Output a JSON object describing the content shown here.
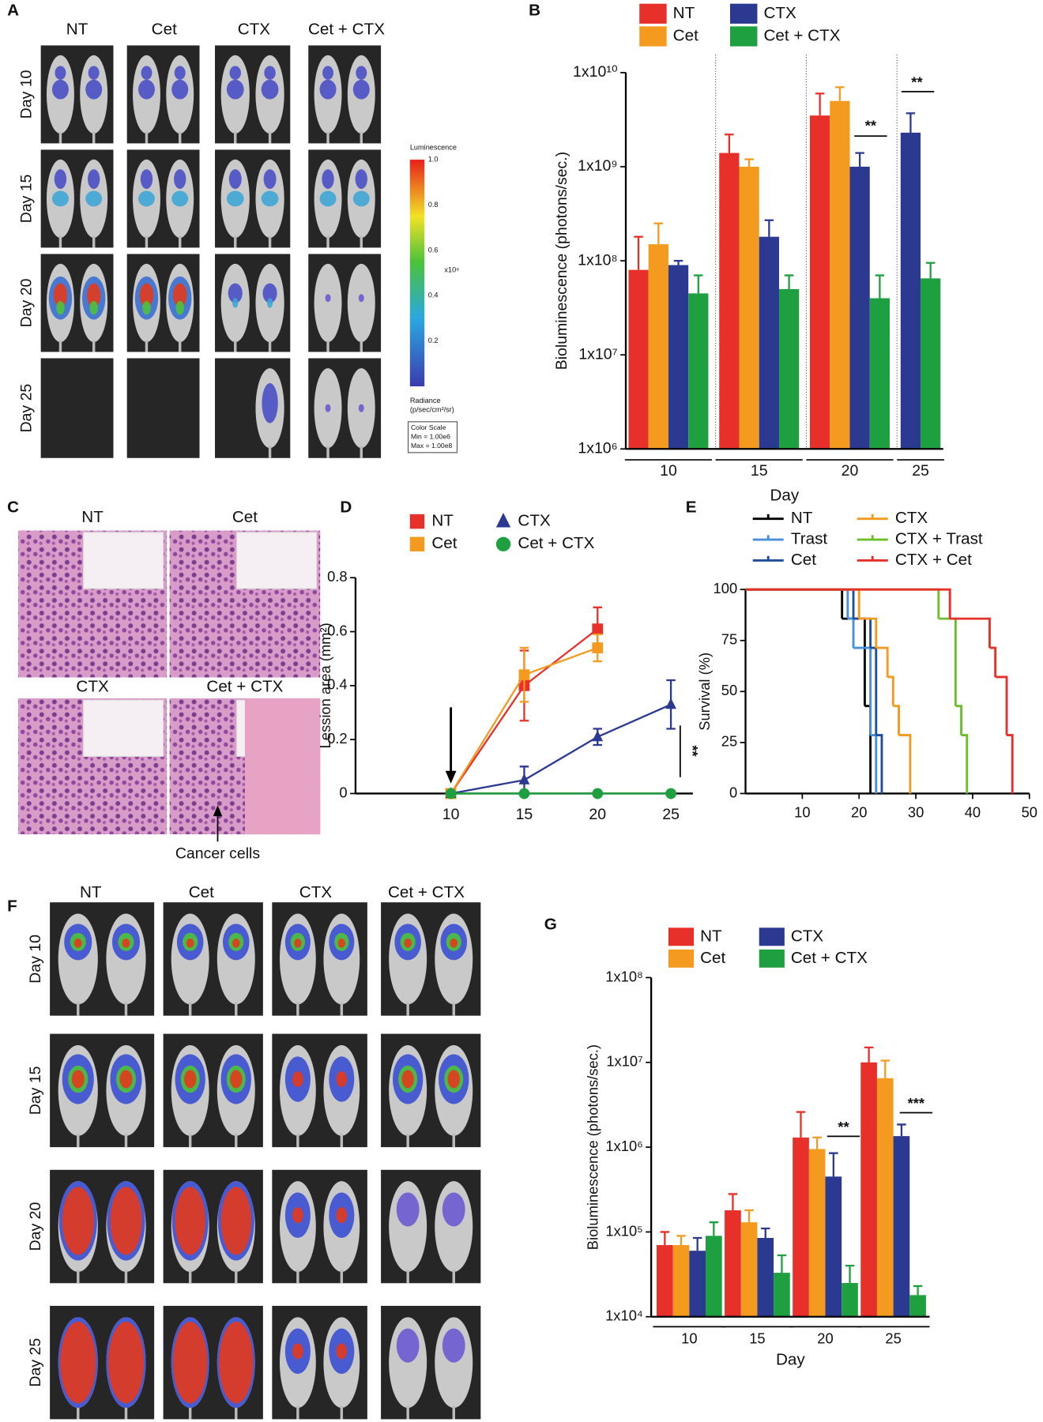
{
  "chart_data": [
    {
      "type": "bar",
      "label": "B",
      "log_scale": true,
      "group_separators": true,
      "ylabel": "Bioluminescence  (photons/sec.)",
      "xlabel": "Day",
      "categories": [
        "10",
        "15",
        "20",
        "25"
      ],
      "ylim": [
        1000000,
        10000000000
      ],
      "yticks": [
        {
          "value": 1000000,
          "label": "1x10⁶"
        },
        {
          "value": 10000000,
          "label": "1x10⁷"
        },
        {
          "value": 100000000,
          "label": "1x10⁸"
        },
        {
          "value": 1000000000,
          "label": "1x10⁹"
        },
        {
          "value": 10000000000,
          "label": "1x10¹⁰"
        }
      ],
      "series": [
        {
          "name": "NT",
          "color": "#e8302a",
          "values": [
            80000000,
            1400000000,
            3500000000,
            null
          ],
          "errors": [
            100000000,
            800000000,
            2500000000,
            null
          ]
        },
        {
          "name": "Cet",
          "color": "#f39a1f",
          "values": [
            150000000,
            1000000000,
            5000000000,
            null
          ],
          "errors": [
            100000000,
            200000000,
            2000000000,
            null
          ]
        },
        {
          "name": "CTX",
          "color": "#2b3990",
          "values": [
            90000000,
            180000000,
            1000000000,
            2300000000
          ],
          "errors": [
            10000000,
            90000000,
            400000000,
            1400000000
          ]
        },
        {
          "name": "Cet + CTX",
          "color": "#1fa040",
          "values": [
            45000000,
            50000000,
            40000000,
            65000000
          ],
          "errors": [
            25000000,
            20000000,
            30000000,
            30000000
          ]
        }
      ],
      "annotations": [
        "**",
        "**"
      ]
    },
    {
      "type": "line",
      "label": "D",
      "ylabel": "Lession area (mm²)",
      "x": [
        10,
        15,
        20,
        25
      ],
      "xlim": [
        3.5,
        26.5
      ],
      "xticks": [
        10,
        15,
        20,
        25
      ],
      "ylim": [
        0,
        0.8
      ],
      "yticks": [
        0,
        0.2,
        0.4,
        0.6,
        0.8
      ],
      "series": [
        {
          "name": "NT",
          "color": "#e8302a",
          "marker": "square",
          "values": [
            0,
            0.4,
            0.61,
            null
          ],
          "errors": [
            0,
            0.13,
            0.08,
            null
          ]
        },
        {
          "name": "Cet",
          "color": "#f39a1f",
          "marker": "square",
          "values": [
            0,
            0.44,
            0.54,
            null
          ],
          "errors": [
            0,
            0.1,
            0.05,
            null
          ]
        },
        {
          "name": "CTX",
          "color": "#2b3990",
          "marker": "triangle",
          "values": [
            0,
            0.05,
            0.21,
            0.33
          ],
          "errors": [
            0,
            0.05,
            0.03,
            0.09
          ]
        },
        {
          "name": "Cet + CTX",
          "color": "#1fa040",
          "marker": "circle",
          "values": [
            0,
            0,
            0,
            0
          ],
          "errors": [
            0,
            0,
            0,
            0
          ]
        }
      ],
      "annotations": [
        "**"
      ]
    },
    {
      "type": "step",
      "label": "E",
      "ylabel": "Survival (%)",
      "xlim": [
        0,
        50
      ],
      "xticks": [
        10,
        20,
        30,
        40,
        50
      ],
      "ylim": [
        0,
        100
      ],
      "yticks": [
        0,
        25,
        50,
        75,
        100
      ],
      "series": [
        {
          "name": "NT",
          "color": "#000000",
          "x": [
            0,
            17,
            21,
            22
          ],
          "values": [
            100,
            85.7,
            42.9,
            0
          ]
        },
        {
          "name": "Trast",
          "color": "#4a90d9",
          "x": [
            0,
            18,
            19,
            22,
            23
          ],
          "values": [
            100,
            85.7,
            71.4,
            28.6,
            0
          ]
        },
        {
          "name": "Cet",
          "color": "#1f4e9c",
          "x": [
            0,
            19,
            22,
            23,
            24
          ],
          "values": [
            100,
            85.7,
            71.4,
            28.6,
            0
          ]
        },
        {
          "name": "CTX",
          "color": "#f39a1f",
          "x": [
            0,
            20,
            23,
            25,
            26,
            27,
            29
          ],
          "values": [
            100,
            85.7,
            71.4,
            57.1,
            42.9,
            28.6,
            0
          ]
        },
        {
          "name": "CTX + Trast",
          "color": "#6cbf2a",
          "x": [
            0,
            34,
            37,
            38,
            39
          ],
          "values": [
            100,
            85.7,
            42.9,
            28.6,
            0
          ]
        },
        {
          "name": "CTX + Cet",
          "color": "#e8302a",
          "x": [
            0,
            36,
            43,
            44,
            46,
            47
          ],
          "values": [
            100,
            85.7,
            71.4,
            57.1,
            28.6,
            0
          ]
        }
      ]
    },
    {
      "type": "bar",
      "label": "G",
      "log_scale": true,
      "group_separators": false,
      "ylabel": "Bioluminescence (photons/sec.)",
      "xlabel": "Day",
      "categories": [
        "10",
        "15",
        "20",
        "25"
      ],
      "ylim": [
        10000,
        100000000
      ],
      "yticks": [
        {
          "value": 10000,
          "label": "1x10⁴"
        },
        {
          "value": 100000,
          "label": "1x10⁵"
        },
        {
          "value": 1000000,
          "label": "1x10⁶"
        },
        {
          "value": 10000000,
          "label": "1x10⁷"
        },
        {
          "value": 100000000,
          "label": "1x10⁸"
        }
      ],
      "series": [
        {
          "name": "NT",
          "color": "#e8302a",
          "values": [
            70000,
            180000,
            1300000,
            10000000
          ],
          "errors": [
            30000,
            100000,
            1300000,
            5000000
          ]
        },
        {
          "name": "Cet",
          "color": "#f39a1f",
          "values": [
            70000,
            130000,
            950000,
            6500000
          ],
          "errors": [
            20000,
            50000,
            350000,
            4000000
          ]
        },
        {
          "name": "CTX",
          "color": "#2b3990",
          "values": [
            60000,
            85000,
            450000,
            1350000
          ],
          "errors": [
            25000,
            25000,
            400000,
            500000
          ]
        },
        {
          "name": "Cet + CTX",
          "color": "#1fa040",
          "values": [
            90000,
            33000,
            25000,
            18000
          ],
          "errors": [
            40000,
            20000,
            15000,
            5000
          ]
        }
      ],
      "annotations": [
        "**",
        "***"
      ]
    }
  ],
  "panels": {
    "A": {
      "label": "A",
      "columns": [
        "NT",
        "Cet",
        "CTX",
        "Cet + CTX"
      ],
      "rows": [
        "Day 10",
        "Day 15",
        "Day 20",
        "Day 25"
      ],
      "colorbar": {
        "title": "Luminescence",
        "ticks": [
          "1.0",
          "0.8",
          "0.6",
          "0.4",
          "0.2"
        ],
        "unit": "x10⁸",
        "radiance": "Radiance",
        "radiance_unit": "(p/sec/cm²/sr)",
        "scale": [
          "Color Scale",
          "Min = 1.00e6",
          "Max = 1.00e8"
        ]
      }
    },
    "C": {
      "label": "C",
      "images": [
        "NT",
        "Cet",
        "CTX",
        "Cet + CTX"
      ],
      "annotation": "Cancer cells"
    },
    "F": {
      "label": "F",
      "columns": [
        "NT",
        "Cet",
        "CTX",
        "Cet  + CTX"
      ],
      "rows": [
        "Day 10",
        "Day 15",
        "Day 20",
        "Day 25"
      ]
    }
  }
}
